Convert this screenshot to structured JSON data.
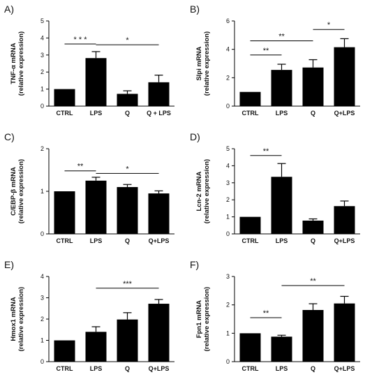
{
  "style": {
    "bar_color": "#000000",
    "axis_color": "#000000",
    "background": "#ffffff"
  },
  "chart_data": [
    {
      "type": "bar",
      "panel_label": "A)",
      "ylabel_lines": [
        "TNF-α mRNA",
        "(relative expression)"
      ],
      "categories": [
        "CTRL",
        "LPS",
        "Q",
        "Q + LPS"
      ],
      "values": [
        1.0,
        2.82,
        0.72,
        1.4
      ],
      "errors": [
        0.0,
        0.38,
        0.18,
        0.42
      ],
      "ylim": [
        0,
        5
      ],
      "yticks": [
        0,
        1,
        2,
        3,
        4,
        5
      ],
      "significance": [
        {
          "from": 0,
          "to": 1,
          "y": 3.65,
          "label": "* * *"
        },
        {
          "from": 1,
          "to": 3,
          "y": 3.6,
          "label": "*"
        }
      ]
    },
    {
      "type": "bar",
      "panel_label": "B)",
      "ylabel_lines": [
        "Slpi mRNA",
        "(relative expression)"
      ],
      "categories": [
        "CTRL",
        "LPS",
        "Q",
        "Q+LPS"
      ],
      "values": [
        1.0,
        2.55,
        2.72,
        4.15
      ],
      "errors": [
        0.0,
        0.4,
        0.55,
        0.6
      ],
      "ylim": [
        0,
        6
      ],
      "yticks": [
        0,
        2,
        4,
        6
      ],
      "significance": [
        {
          "from": 0,
          "to": 1,
          "y": 3.6,
          "label": "**"
        },
        {
          "from": 0,
          "to": 2,
          "y": 4.6,
          "label": "**"
        },
        {
          "from": 2,
          "to": 3,
          "y": 5.4,
          "label": "*"
        }
      ]
    },
    {
      "type": "bar",
      "panel_label": "C)",
      "ylabel_lines": [
        "C/EBP-β mRNA",
        "(relative expression)"
      ],
      "categories": [
        "CTRL",
        "LPS",
        "Q",
        "Q+LPS"
      ],
      "values": [
        1.0,
        1.25,
        1.1,
        0.95
      ],
      "errors": [
        0.0,
        0.08,
        0.06,
        0.06
      ],
      "ylim": [
        0,
        2
      ],
      "yticks": [
        0,
        1,
        2
      ],
      "significance": [
        {
          "from": 0,
          "to": 1,
          "y": 1.48,
          "label": "**"
        },
        {
          "from": 1,
          "to": 3,
          "y": 1.42,
          "label": "*"
        }
      ]
    },
    {
      "type": "bar",
      "panel_label": "D)",
      "ylabel_lines": [
        "Lcn-2 mRNA",
        "(relative expression)"
      ],
      "categories": [
        "CTRL",
        "LPS",
        "Q",
        "Q+LPS"
      ],
      "values": [
        1.0,
        3.35,
        0.78,
        1.63
      ],
      "errors": [
        0.0,
        0.78,
        0.1,
        0.3
      ],
      "ylim": [
        0,
        5
      ],
      "yticks": [
        0,
        1,
        2,
        3,
        4,
        5
      ],
      "significance": [
        {
          "from": 0,
          "to": 1,
          "y": 4.6,
          "label": "**"
        }
      ]
    },
    {
      "type": "bar",
      "panel_label": "E)",
      "ylabel_lines": [
        "Hmox1 mRNA",
        "(relative expression)"
      ],
      "categories": [
        "CTRL",
        "LPS",
        "Q",
        "Q+LPS"
      ],
      "values": [
        1.0,
        1.4,
        1.98,
        2.72
      ],
      "errors": [
        0.0,
        0.24,
        0.32,
        0.2
      ],
      "ylim": [
        0,
        4
      ],
      "yticks": [
        0,
        1,
        2,
        3,
        4
      ],
      "significance": [
        {
          "from": 1,
          "to": 3,
          "y": 3.45,
          "label": "***"
        }
      ]
    },
    {
      "type": "bar",
      "panel_label": "F)",
      "ylabel_lines": [
        "Fpn1 mRNA",
        "(relative expression)"
      ],
      "categories": [
        "CTRL",
        "LPS",
        "Q",
        "Q+LPS"
      ],
      "values": [
        1.0,
        0.88,
        1.82,
        2.05
      ],
      "errors": [
        0.0,
        0.05,
        0.22,
        0.25
      ],
      "ylim": [
        0,
        3
      ],
      "yticks": [
        0,
        1,
        2,
        3
      ],
      "significance": [
        {
          "from": 0,
          "to": 1,
          "y": 1.55,
          "label": "**"
        },
        {
          "from": 1,
          "to": 3,
          "y": 2.68,
          "label": "**"
        }
      ]
    }
  ]
}
